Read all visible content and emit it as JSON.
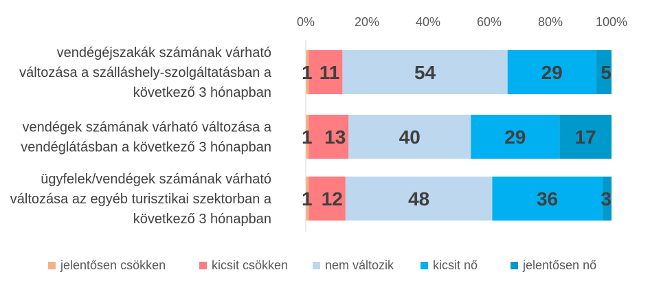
{
  "chart_data": {
    "type": "bar",
    "orientation": "horizontal",
    "stacked": "percent",
    "categories": [
      [
        "vendégéjszakák számának várható",
        "változása a szálláshely-szolgáltatásban a",
        "következő 3 hónapban"
      ],
      [
        "vendégek számának várható változása a",
        "vendéglátásban a következő 3 hónapban"
      ],
      [
        "ügyfelek/vendégek számának várható",
        "változása az egyéb turisztikai szektorban a",
        "következő 3 hónapban"
      ]
    ],
    "series": [
      {
        "name": "jelentősen csökken",
        "color": "#F4B183",
        "values": [
          1,
          1,
          1
        ],
        "labels": [
          "1",
          "1",
          "1"
        ]
      },
      {
        "name": "kicsit csökken",
        "color": "#FF7C80",
        "values": [
          11,
          13,
          12
        ],
        "labels": [
          "11",
          "13",
          "12"
        ]
      },
      {
        "name": "nem változik",
        "color": "#BDD7EE",
        "values": [
          54,
          40,
          48
        ],
        "labels": [
          "54",
          "40",
          "48"
        ]
      },
      {
        "name": "kicsit nő",
        "color": "#00B0F0",
        "values": [
          29,
          29,
          36
        ],
        "labels": [
          "29",
          "29",
          "36"
        ]
      },
      {
        "name": "jelentősen nő",
        "color": "#0099CC",
        "values": [
          5,
          17,
          3
        ],
        "labels": [
          "5",
          "17",
          "3"
        ]
      }
    ],
    "x_ticks": [
      "0%",
      "20%",
      "40%",
      "60%",
      "80%",
      "100%"
    ],
    "xlim": [
      0,
      100
    ],
    "grid": false,
    "legend_position": "bottom"
  }
}
